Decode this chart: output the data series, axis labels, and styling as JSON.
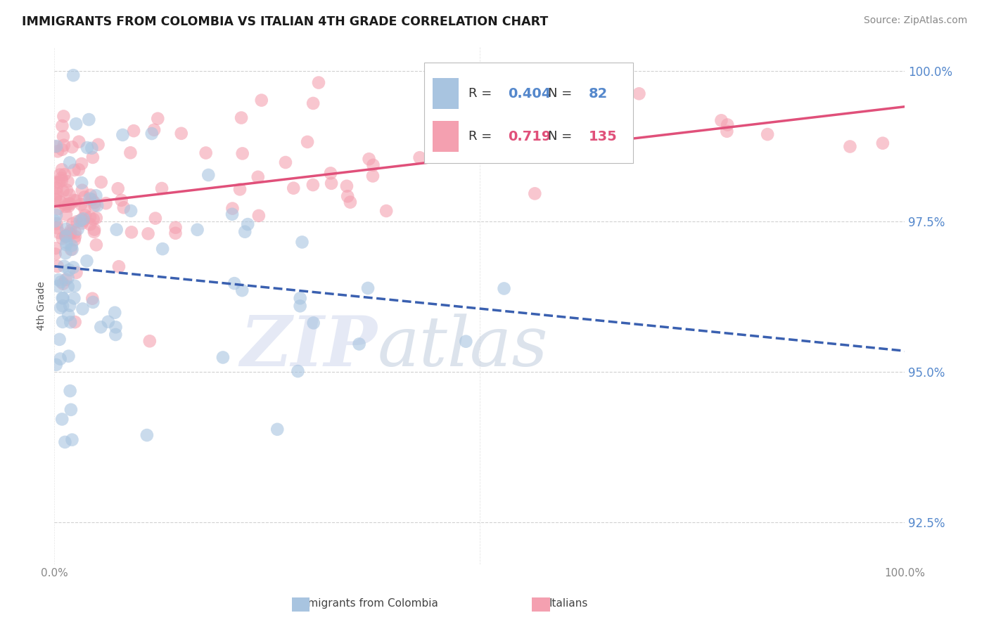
{
  "title": "IMMIGRANTS FROM COLOMBIA VS ITALIAN 4TH GRADE CORRELATION CHART",
  "source_text": "Source: ZipAtlas.com",
  "ylabel": "4th Grade",
  "r_colombia": 0.404,
  "n_colombia": 82,
  "r_italian": 0.719,
  "n_italian": 135,
  "color_colombia": "#a8c4e0",
  "color_italian": "#f4a0b0",
  "trendline_colombia_color": "#3a60b0",
  "trendline_italian_color": "#e0507a",
  "watermark_zip_color": "#d8dff0",
  "watermark_atlas_color": "#c8d4ea",
  "background_color": "#ffffff",
  "tick_color_y": "#5588cc",
  "tick_color_x": "#888888",
  "ylabel_color": "#555555",
  "legend_r_color_colombia": "#5588cc",
  "legend_r_color_italian": "#e0507a",
  "legend_n_color_colombia": "#5588cc",
  "legend_n_color_italian": "#e0507a",
  "xlim": [
    0,
    100
  ],
  "ylim": [
    91.8,
    100.4
  ],
  "yticks": [
    92.5,
    95.0,
    97.5,
    100.0
  ],
  "ytick_labels": [
    "92.5%",
    "95.0%",
    "97.5%",
    "100.0%"
  ],
  "xtick_labels": [
    "0.0%",
    "100.0%"
  ]
}
